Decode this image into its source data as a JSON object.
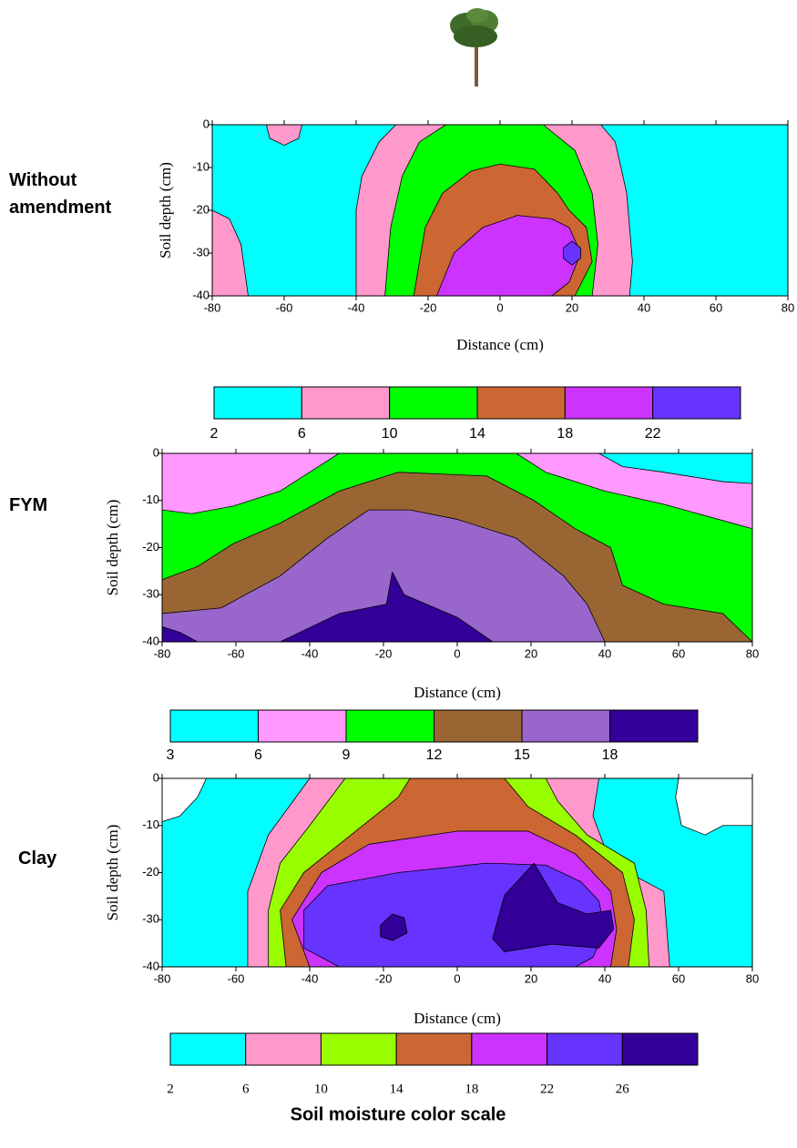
{
  "chart_data": [
    {
      "type": "contour",
      "panel_label": "Without amendment",
      "ylabel": "Soil depth (cm)",
      "xlabel": "Distance (cm)",
      "xlim": [
        -80,
        80
      ],
      "ylim": [
        -40,
        0
      ],
      "xticks": [
        -80,
        -60,
        -40,
        -20,
        0,
        20,
        40,
        60,
        80
      ],
      "yticks": [
        0,
        -10,
        -20,
        -30,
        -40
      ],
      "levels": [
        2,
        6,
        10,
        14,
        18,
        22
      ],
      "colors": [
        "#00ffff",
        "#ff99cc",
        "#00ff00",
        "#cc6633",
        "#cc33ff",
        "#6633ff"
      ]
    },
    {
      "type": "contour",
      "panel_label": "FYM",
      "ylabel": "Soil depth (cm)",
      "xlabel": "Distance (cm)",
      "xlim": [
        -80,
        80
      ],
      "ylim": [
        -40,
        0
      ],
      "xticks": [
        -80,
        -60,
        -40,
        -20,
        0,
        20,
        40,
        60,
        80
      ],
      "yticks": [
        0,
        -10,
        -20,
        -30,
        -40
      ],
      "levels": [
        3,
        6,
        9,
        12,
        15,
        18
      ],
      "colors": [
        "#00ffff",
        "#ff99ff",
        "#00ff00",
        "#996633",
        "#9966cc",
        "#330099"
      ]
    },
    {
      "type": "contour",
      "panel_label": "Clay",
      "ylabel": "Soil depth (cm)",
      "xlabel": "Distance (cm)",
      "xlim": [
        -80,
        80
      ],
      "ylim": [
        -40,
        0
      ],
      "xticks": [
        -80,
        -60,
        -40,
        -20,
        0,
        20,
        40,
        60,
        80
      ],
      "yticks": [
        0,
        -10,
        -20,
        -30,
        -40
      ],
      "levels": [
        2,
        6,
        10,
        14,
        18,
        22,
        26
      ],
      "colors": [
        "#00ffff",
        "#ff99cc",
        "#99ff00",
        "#cc6633",
        "#cc33ff",
        "#6633ff",
        "#330099"
      ]
    }
  ],
  "caption": "Soil moisture color scale"
}
